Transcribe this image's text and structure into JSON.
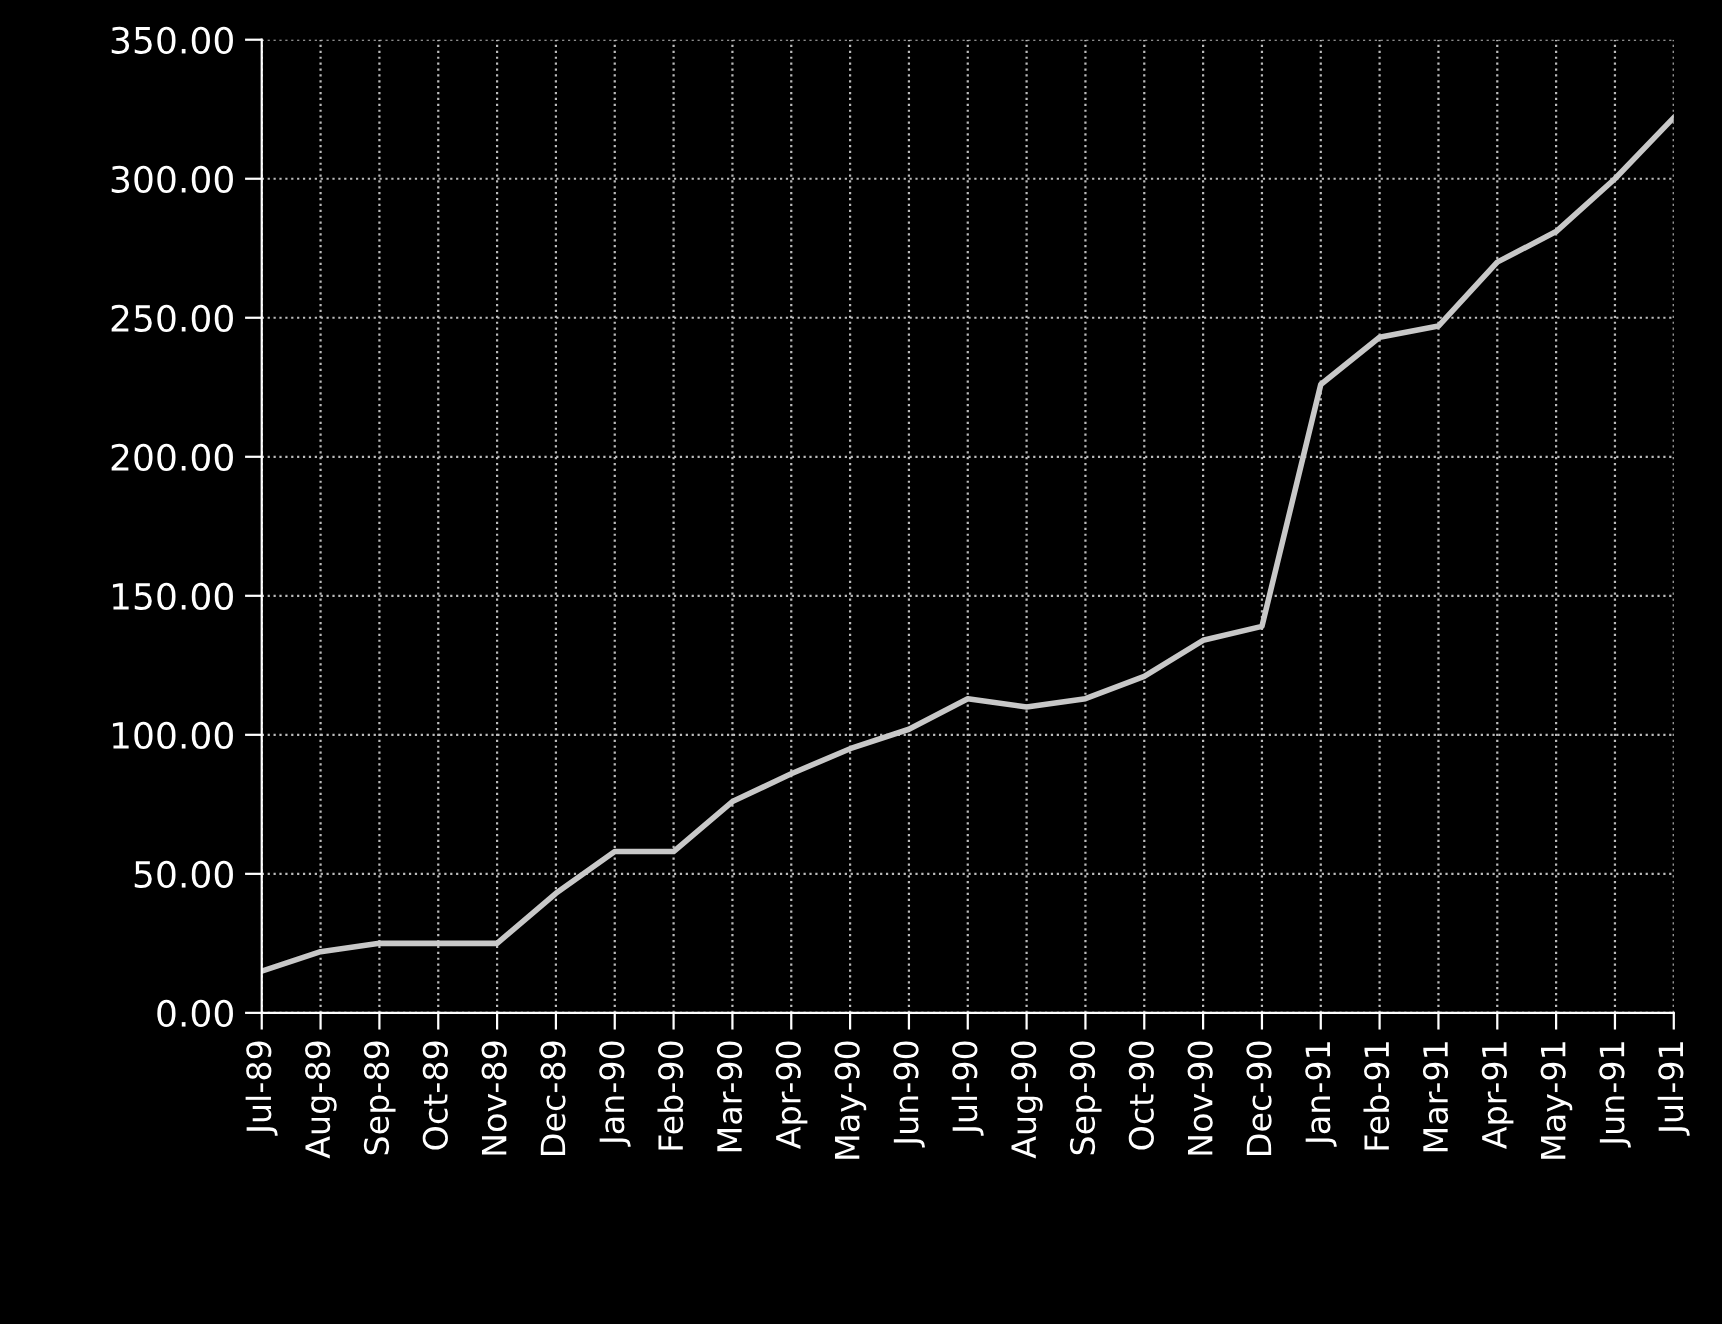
{
  "chart_data": {
    "type": "line",
    "categories": [
      "Jul-89",
      "Aug-89",
      "Sep-89",
      "Oct-89",
      "Nov-89",
      "Dec-89",
      "Jan-90",
      "Feb-90",
      "Mar-90",
      "Apr-90",
      "May-90",
      "Jun-90",
      "Jul-90",
      "Aug-90",
      "Sep-90",
      "Oct-90",
      "Nov-90",
      "Dec-90",
      "Jan-91",
      "Feb-91",
      "Mar-91",
      "Apr-91",
      "May-91",
      "Jun-91",
      "Jul-91"
    ],
    "series": [
      {
        "color": "#c8c8c8",
        "values": [
          15,
          22,
          25,
          25,
          25,
          43,
          58,
          58,
          76,
          86,
          95,
          102,
          113,
          110,
          113,
          121,
          134,
          139,
          226,
          243,
          247,
          270,
          281,
          300,
          322
        ]
      }
    ],
    "ylim": [
      0,
      350
    ],
    "yticks": [
      {
        "value": 0,
        "label": "0.00"
      },
      {
        "value": 50,
        "label": "50.00"
      },
      {
        "value": 100,
        "label": "100.00"
      },
      {
        "value": 150,
        "label": "150.00"
      },
      {
        "value": 200,
        "label": "200.00"
      },
      {
        "value": 250,
        "label": "250.00"
      },
      {
        "value": 300,
        "label": "300.00"
      },
      {
        "value": 350,
        "label": "350.00"
      }
    ],
    "grid": true,
    "marker": "none",
    "line_style": "solid"
  }
}
